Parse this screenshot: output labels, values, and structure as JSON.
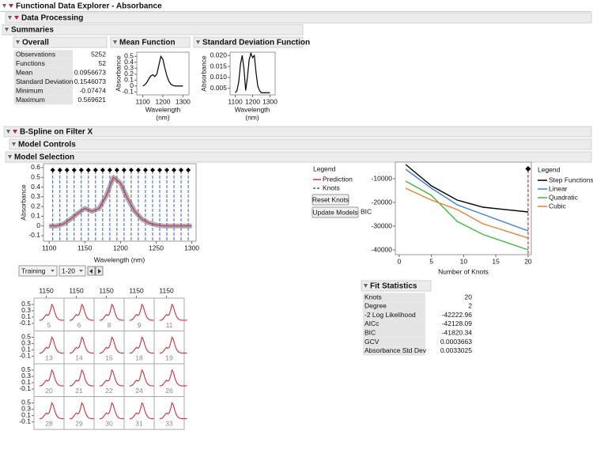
{
  "header": {
    "title": "Functional Data Explorer - Absorbance"
  },
  "data_processing": {
    "title": "Data Processing"
  },
  "summaries": {
    "title": "Summaries",
    "overall": {
      "title": "Overall",
      "rows": [
        [
          "Observations",
          5252
        ],
        [
          "Functions",
          52
        ],
        [
          "Mean",
          0.0956673
        ],
        [
          "Standard Deviation",
          0.1546073
        ],
        [
          "Minimum",
          -0.07474
        ],
        [
          "Maximum",
          0.569621
        ]
      ]
    },
    "mean_function": {
      "title": "Mean Function",
      "y_label": "Absorbance",
      "x_label": [
        "Wavelength",
        "(nm)"
      ],
      "x": [
        1100,
        1110,
        1120,
        1130,
        1140,
        1150,
        1160,
        1170,
        1180,
        1190,
        1200,
        1210,
        1220,
        1230,
        1240,
        1250,
        1260,
        1270,
        1280,
        1290,
        1300
      ],
      "values": [
        0.0,
        0.02,
        0.06,
        0.12,
        0.17,
        0.19,
        0.16,
        0.2,
        0.35,
        0.5,
        0.45,
        0.3,
        0.17,
        0.08,
        0.03,
        0.01,
        0.0,
        0.0,
        0.0,
        0.0,
        0.0
      ],
      "xlim": [
        1070,
        1330
      ],
      "ylim": [
        -0.15,
        0.57
      ],
      "xticks": [
        1100,
        1200,
        1300
      ],
      "yticks": [
        -0.1,
        0,
        0.1,
        0.2,
        0.3,
        0.4,
        0.5
      ]
    },
    "sd_function": {
      "title": "Standard Deviation Function",
      "y_label": "Absorbance",
      "x_label": [
        "Wavelength",
        "(nm)"
      ],
      "x": [
        1100,
        1110,
        1120,
        1130,
        1140,
        1150,
        1160,
        1170,
        1180,
        1190,
        1200,
        1210,
        1220,
        1230,
        1240,
        1250,
        1260,
        1270,
        1280,
        1290,
        1300
      ],
      "values": [
        0.003,
        0.004,
        0.008,
        0.016,
        0.02,
        0.014,
        0.004,
        0.01,
        0.018,
        0.021,
        0.019,
        0.02,
        0.012,
        0.006,
        0.004,
        0.003,
        0.003,
        0.003,
        0.003,
        0.003,
        0.003
      ],
      "xlim": [
        1070,
        1330
      ],
      "ylim": [
        0.002,
        0.0215
      ],
      "xticks": [
        1100,
        1200,
        1300
      ],
      "yticks": [
        {
          "value": 0.005,
          "label": "0.005"
        },
        {
          "value": 0.01,
          "label": "0.010"
        },
        {
          "value": 0.015,
          "label": "0.015"
        },
        {
          "value": 0.02,
          "label": "0.020"
        }
      ]
    }
  },
  "bspline": {
    "title": "B-Spline on Filter X",
    "model_controls": {
      "title": "Model Controls"
    },
    "model_selection": {
      "title": "Model Selection",
      "fit_plot": {
        "y_label": "Absorbance",
        "x_label": "Wavelength (nm)",
        "x": [
          1100,
          1110,
          1120,
          1130,
          1140,
          1150,
          1160,
          1170,
          1180,
          1190,
          1200,
          1210,
          1220,
          1230,
          1240,
          1250,
          1260,
          1270,
          1280,
          1290,
          1300
        ],
        "values": [
          0.0,
          0.0,
          0.02,
          0.07,
          0.13,
          0.18,
          0.15,
          0.18,
          0.31,
          0.5,
          0.44,
          0.28,
          0.15,
          0.07,
          0.03,
          0.01,
          0.0,
          0.0,
          0.0,
          0.0,
          0.0
        ],
        "knots": [
          1105,
          1115,
          1125,
          1135,
          1145,
          1155,
          1165,
          1175,
          1185,
          1195,
          1205,
          1215,
          1225,
          1235,
          1245,
          1255,
          1265,
          1275,
          1285,
          1295
        ],
        "xlim": [
          1092,
          1306
        ],
        "ylim": [
          -0.157,
          0.64
        ],
        "xticks": [
          1100,
          1150,
          1200,
          1250,
          1300
        ],
        "yticks": [
          -0.1,
          0,
          0.1,
          0.2,
          0.3,
          0.4,
          0.5,
          0.6
        ]
      },
      "legend": {
        "title": "Legend",
        "prediction": "Prediction",
        "knots": "Knots"
      },
      "buttons": [
        "Reset Knots",
        "Update Models"
      ],
      "bic_plot": {
        "y_label": "BIC",
        "x_label": "Number of Knots",
        "x": [
          1,
          5,
          9,
          13,
          20
        ],
        "series": [
          {
            "name": "Step Functions",
            "color": "#000000",
            "values": [
              -4000,
              -13000,
              -19000,
              -22000,
              -24000
            ]
          },
          {
            "name": "Linear",
            "color": "#3c7ee0",
            "values": [
              -6000,
              -14000,
              -21000,
              -25000,
              -32000
            ]
          },
          {
            "name": "Quadratic",
            "color": "#3dbb3d",
            "values": [
              -11000,
              -17000,
              -28000,
              -33500,
              -40000
            ]
          },
          {
            "name": "Cubic",
            "color": "#f07e30",
            "values": [
              -14000,
              -19000,
              -23000,
              -29000,
              -35000
            ]
          }
        ],
        "legend_title": "Legend",
        "xlim": [
          -0.6,
          20.5
        ],
        "ylim": [
          -42000,
          -3000
        ],
        "xticks": [
          0,
          5,
          10,
          15,
          20
        ],
        "yticks": [
          -40000,
          -30000,
          -20000,
          -10000
        ]
      },
      "selectors": [
        "Training",
        "1-20"
      ],
      "function_grid": {
        "ids": [
          5,
          6,
          8,
          9,
          11,
          13,
          14,
          15,
          18,
          19,
          20,
          21,
          22,
          24,
          26,
          28,
          29,
          30,
          31,
          33
        ],
        "xticks": [
          1150
        ],
        "yticks": [
          -0.1,
          0.1,
          0.3,
          0.5
        ],
        "xlim": [
          1060,
          1280
        ],
        "ylim": [
          -0.34,
          0.7
        ]
      },
      "fit_statistics": {
        "title": "Fit Statistics",
        "rows": [
          [
            "Knots",
            20
          ],
          [
            "Degree",
            2
          ],
          [
            "-2 Log Likelihood",
            -42222.96
          ],
          [
            "AICc",
            -42128.09
          ],
          [
            "BIC",
            -41820.34
          ],
          [
            "GCV",
            0.0003663
          ],
          [
            "Absorbance Std Dev",
            0.0033025
          ]
        ]
      }
    }
  }
}
